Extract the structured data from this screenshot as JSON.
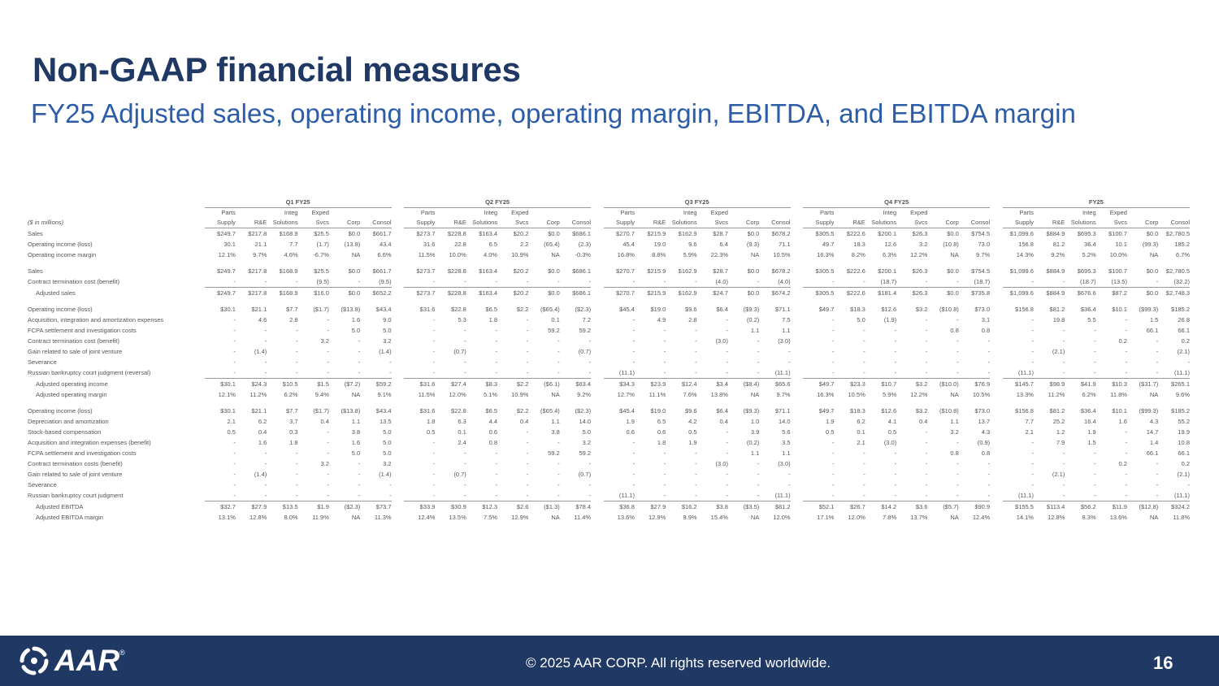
{
  "title": "Non-GAAP financial measures",
  "subtitle": "FY25 Adjusted sales, operating income, operating margin, EBITDA, and EBITDA margin",
  "table": {
    "quarters": [
      "Q1 FY25",
      "Q2 FY25",
      "Q3 FY25",
      "Q4 FY25",
      "FY25"
    ],
    "units_label": "($ in millions)",
    "header_top": [
      "Parts",
      "",
      "Integ",
      "Exped",
      "",
      ""
    ],
    "header_bottom": [
      "Supply",
      "R&E",
      "Solutions",
      "Svcs",
      "Corp",
      "Consol"
    ],
    "rows": [
      {
        "label": "Sales",
        "cells": [
          "$249.7",
          "$217.8",
          "$168.9",
          "$25.5",
          "$0.0",
          "$661.7",
          "$273.7",
          "$228.8",
          "$163.4",
          "$20.2",
          "$0.0",
          "$686.1",
          "$270.7",
          "$215.9",
          "$162.9",
          "$28.7",
          "$0.0",
          "$678.2",
          "$305.5",
          "$222.6",
          "$200.1",
          "$26.3",
          "$0.0",
          "$754.5",
          "$1,099.6",
          "$884.9",
          "$695.3",
          "$100.7",
          "$0.0",
          "$2,780.5"
        ]
      },
      {
        "label": "Operating income (loss)",
        "cells": [
          "30.1",
          "21.1",
          "7.7",
          "(1.7)",
          "(13.8)",
          "43.4",
          "31.6",
          "22.8",
          "6.5",
          "2.2",
          "(65.4)",
          "(2.3)",
          "45.4",
          "19.0",
          "9.6",
          "6.4",
          "(9.3)",
          "71.1",
          "49.7",
          "18.3",
          "12.6",
          "3.2",
          "(10.8)",
          "73.0",
          "156.8",
          "81.2",
          "36.4",
          "10.1",
          "(99.3)",
          "185.2"
        ]
      },
      {
        "label": "Operating income margin",
        "cells": [
          "12.1%",
          "9.7%",
          "4.6%",
          "-6.7%",
          "NA",
          "6.6%",
          "11.5%",
          "10.0%",
          "4.0%",
          "10.9%",
          "NA",
          "-0.3%",
          "16.8%",
          "8.8%",
          "5.9%",
          "22.3%",
          "NA",
          "10.5%",
          "16.3%",
          "8.2%",
          "6.3%",
          "12.2%",
          "NA",
          "9.7%",
          "14.3%",
          "9.2%",
          "5.2%",
          "10.0%",
          "NA",
          "6.7%"
        ]
      },
      {
        "spacer": true
      },
      {
        "label": "Sales",
        "cells": [
          "$249.7",
          "$217.8",
          "$168.9",
          "$25.5",
          "$0.0",
          "$661.7",
          "$273.7",
          "$228.8",
          "$163.4",
          "$20.2",
          "$0.0",
          "$686.1",
          "$270.7",
          "$215.9",
          "$162.9",
          "$28.7",
          "$0.0",
          "$678.2",
          "$305.5",
          "$222.6",
          "$200.1",
          "$26.3",
          "$0.0",
          "$754.5",
          "$1,099.6",
          "$884.9",
          "$695.3",
          "$100.7",
          "$0.0",
          "$2,780.5"
        ]
      },
      {
        "label": "Contract termination cost (benefit)",
        "cells": [
          "-",
          "-",
          "-",
          "(9.5)",
          "-",
          "(9.5)",
          "-",
          "-",
          "-",
          "-",
          "-",
          "-",
          "-",
          "-",
          "-",
          "(4.0)",
          "-",
          "(4.0)",
          "-",
          "-",
          "(18.7)",
          "-",
          "-",
          "(18.7)",
          "-",
          "-",
          "(18.7)",
          "(13.5)",
          "-",
          "(32.2)"
        ]
      },
      {
        "label": "Adjusted sales",
        "indent": true,
        "total": true,
        "cells": [
          "$249.7",
          "$217.8",
          "$168.9",
          "$16.0",
          "$0.0",
          "$652.2",
          "$273.7",
          "$228.8",
          "$163.4",
          "$20.2",
          "$0.0",
          "$686.1",
          "$270.7",
          "$215.9",
          "$162.9",
          "$24.7",
          "$0.0",
          "$674.2",
          "$305.5",
          "$222.6",
          "$181.4",
          "$26.3",
          "$0.0",
          "$735.8",
          "$1,099.6",
          "$884.9",
          "$676.6",
          "$87.2",
          "$0.0",
          "$2,748.3"
        ]
      },
      {
        "spacer": true
      },
      {
        "label": "Operating income (loss)",
        "cells": [
          "$30.1",
          "$21.1",
          "$7.7",
          "($1.7)",
          "($13.8)",
          "$43.4",
          "$31.6",
          "$22.8",
          "$6.5",
          "$2.2",
          "($65.4)",
          "($2.3)",
          "$45.4",
          "$19.0",
          "$9.6",
          "$6.4",
          "($9.3)",
          "$71.1",
          "$49.7",
          "$18.3",
          "$12.6",
          "$3.2",
          "($10.8)",
          "$73.0",
          "$156.8",
          "$81.2",
          "$36.4",
          "$10.1",
          "($99.3)",
          "$185.2"
        ]
      },
      {
        "label": "Acquisition, integration and amortization expenses",
        "cells": [
          "-",
          "4.6",
          "2.8",
          "-",
          "1.6",
          "9.0",
          "-",
          "5.3",
          "1.8",
          "-",
          "0.1",
          "7.2",
          "-",
          "4.9",
          "2.8",
          "-",
          "(0.2)",
          "7.5",
          "-",
          "5.0",
          "(1.9)",
          "-",
          "-",
          "3.1",
          "-",
          "19.8",
          "5.5",
          "-",
          "1.5",
          "26.8"
        ]
      },
      {
        "label": "FCPA settlement and investigation costs",
        "cells": [
          "-",
          "-",
          "-",
          "-",
          "5.0",
          "5.0",
          "-",
          "-",
          "-",
          "-",
          "59.2",
          "59.2",
          "-",
          "-",
          "-",
          "-",
          "1.1",
          "1.1",
          "-",
          "-",
          "-",
          "-",
          "0.8",
          "0.8",
          "-",
          "-",
          "-",
          "-",
          "66.1",
          "66.1"
        ]
      },
      {
        "label": "Contract termination cost (benefit)",
        "cells": [
          "-",
          "-",
          "-",
          "3.2",
          "-",
          "3.2",
          "-",
          "-",
          "-",
          "-",
          "-",
          "-",
          "-",
          "-",
          "-",
          "(3.0)",
          "-",
          "(3.0)",
          "-",
          "-",
          "-",
          "-",
          "-",
          "-",
          "-",
          "-",
          "-",
          "0.2",
          "-",
          "0.2"
        ]
      },
      {
        "label": "Gain related to sale of joint venture",
        "cells": [
          "-",
          "(1.4)",
          "-",
          "-",
          "-",
          "(1.4)",
          "-",
          "(0.7)",
          "-",
          "-",
          "-",
          "(0.7)",
          "-",
          "-",
          "-",
          "-",
          "-",
          "-",
          "-",
          "-",
          "-",
          "-",
          "-",
          "-",
          "-",
          "(2.1)",
          "-",
          "-",
          "-",
          "(2.1)"
        ]
      },
      {
        "label": "Severance",
        "cells": [
          "-",
          "-",
          "-",
          "-",
          "-",
          "-",
          "-",
          "-",
          "-",
          "-",
          "-",
          "-",
          "-",
          "-",
          "-",
          "-",
          "-",
          "-",
          "-",
          "-",
          "-",
          "-",
          "-",
          "-",
          "-",
          "-",
          "-",
          "-",
          "-",
          "-"
        ]
      },
      {
        "label": "Russian bankruptcy court judgment (reversal)",
        "cells": [
          "-",
          "-",
          "-",
          "-",
          "-",
          "-",
          "-",
          "-",
          "-",
          "-",
          "-",
          "-",
          "(11.1)",
          "-",
          "-",
          "-",
          "-",
          "(11.1)",
          "-",
          "-",
          "-",
          "-",
          "-",
          "-",
          "(11.1)",
          "-",
          "-",
          "-",
          "-",
          "(11.1)"
        ]
      },
      {
        "label": "Adjusted operating income",
        "indent": true,
        "total": true,
        "cells": [
          "$30.1",
          "$24.3",
          "$10.5",
          "$1.5",
          "($7.2)",
          "$59.2",
          "$31.6",
          "$27.4",
          "$8.3",
          "$2.2",
          "($6.1)",
          "$63.4",
          "$34.3",
          "$23.9",
          "$12.4",
          "$3.4",
          "($8.4)",
          "$65.6",
          "$49.7",
          "$23.3",
          "$10.7",
          "$3.2",
          "($10.0)",
          "$76.9",
          "$145.7",
          "$98.9",
          "$41.9",
          "$10.3",
          "($31.7)",
          "$265.1"
        ]
      },
      {
        "label": "Adjusted operating margin",
        "indent": true,
        "cells": [
          "12.1%",
          "11.2%",
          "6.2%",
          "9.4%",
          "NA",
          "9.1%",
          "11.5%",
          "12.0%",
          "5.1%",
          "10.9%",
          "NA",
          "9.2%",
          "12.7%",
          "11.1%",
          "7.6%",
          "13.8%",
          "NA",
          "9.7%",
          "16.3%",
          "10.5%",
          "5.9%",
          "12.2%",
          "NA",
          "10.5%",
          "13.3%",
          "11.2%",
          "6.2%",
          "11.8%",
          "NA",
          "9.6%"
        ]
      },
      {
        "spacer": true
      },
      {
        "label": "Operating income (loss)",
        "cells": [
          "$30.1",
          "$21.1",
          "$7.7",
          "($1.7)",
          "($13.8)",
          "$43.4",
          "$31.6",
          "$22.8",
          "$6.5",
          "$2.2",
          "($65.4)",
          "($2.3)",
          "$45.4",
          "$19.0",
          "$9.6",
          "$6.4",
          "($9.3)",
          "$71.1",
          "$49.7",
          "$18.3",
          "$12.6",
          "$3.2",
          "($10.8)",
          "$73.0",
          "$156.8",
          "$81.2",
          "$36.4",
          "$10.1",
          "($99.3)",
          "$185.2"
        ]
      },
      {
        "label": "Depreciation and amortization",
        "cells": [
          "2.1",
          "6.2",
          "3.7",
          "0.4",
          "1.1",
          "13.5",
          "1.8",
          "6.3",
          "4.4",
          "0.4",
          "1.1",
          "14.0",
          "1.9",
          "6.5",
          "4.2",
          "0.4",
          "1.0",
          "14.0",
          "1.9",
          "6.2",
          "4.1",
          "0.4",
          "1.1",
          "13.7",
          "7.7",
          "25.2",
          "16.4",
          "1.6",
          "4.3",
          "55.2"
        ]
      },
      {
        "label": "Stock-based compensation",
        "cells": [
          "0.5",
          "0.4",
          "0.3",
          "-",
          "3.8",
          "5.0",
          "0.5",
          "0.1",
          "0.6",
          "-",
          "3.8",
          "5.0",
          "0.6",
          "0.6",
          "0.5",
          "-",
          "3.9",
          "5.6",
          "0.5",
          "0.1",
          "0.5",
          "-",
          "3.2",
          "4.3",
          "2.1",
          "1.2",
          "1.9",
          "-",
          "14.7",
          "19.9"
        ]
      },
      {
        "label": "Acquisition and integration expenses (benefit)",
        "cells": [
          "-",
          "1.6",
          "1.8",
          "-",
          "1.6",
          "5.0",
          "-",
          "2.4",
          "0.8",
          "-",
          "-",
          "3.2",
          "-",
          "1.8",
          "1.9",
          "-",
          "(0.2)",
          "3.5",
          "-",
          "2.1",
          "(3.0)",
          "-",
          "-",
          "(0.9)",
          "-",
          "7.9",
          "1.5",
          "-",
          "1.4",
          "10.8"
        ]
      },
      {
        "label": "FCPA settlement and investigation costs",
        "cells": [
          "-",
          "-",
          "-",
          "-",
          "5.0",
          "5.0",
          "-",
          "-",
          "-",
          "-",
          "59.2",
          "59.2",
          "-",
          "-",
          "-",
          "-",
          "1.1",
          "1.1",
          "-",
          "-",
          "-",
          "-",
          "0.8",
          "0.8",
          "-",
          "-",
          "-",
          "-",
          "66.1",
          "66.1"
        ]
      },
      {
        "label": "Contract termination costs (benefit)",
        "cells": [
          "-",
          "-",
          "-",
          "3.2",
          "-",
          "3.2",
          "-",
          "-",
          "-",
          "-",
          "-",
          "-",
          "-",
          "-",
          "-",
          "(3.0)",
          "-",
          "(3.0)",
          "-",
          "-",
          "-",
          "-",
          "-",
          "-",
          "-",
          "-",
          "-",
          "0.2",
          "-",
          "0.2"
        ]
      },
      {
        "label": "Gain related to sale of joint venture",
        "cells": [
          "-",
          "(1.4)",
          "-",
          "-",
          "-",
          "(1.4)",
          "-",
          "(0.7)",
          "-",
          "-",
          "-",
          "(0.7)",
          "-",
          "-",
          "-",
          "-",
          "-",
          "-",
          "-",
          "-",
          "-",
          "-",
          "-",
          "-",
          "-",
          "(2.1)",
          "-",
          "-",
          "-",
          "(2.1)"
        ]
      },
      {
        "label": "Severance",
        "cells": [
          "-",
          "-",
          "-",
          "-",
          "-",
          "-",
          "-",
          "-",
          "-",
          "-",
          "-",
          "-",
          "-",
          "-",
          "-",
          "-",
          "-",
          "-",
          "-",
          "-",
          "-",
          "-",
          "-",
          "-",
          "-",
          "-",
          "-",
          "-",
          "-",
          "-"
        ]
      },
      {
        "label": "Russian bankruptcy court judgment",
        "cells": [
          "-",
          "-",
          "-",
          "-",
          "-",
          "-",
          "-",
          "-",
          "-",
          "-",
          "-",
          "-",
          "(11.1)",
          "-",
          "-",
          "-",
          "-",
          "(11.1)",
          "-",
          "-",
          "-",
          "-",
          "-",
          "-",
          "(11.1)",
          "-",
          "-",
          "-",
          "-",
          "(11.1)"
        ]
      },
      {
        "label": "Adjusted EBITDA",
        "indent": true,
        "total": true,
        "cells": [
          "$32.7",
          "$27.9",
          "$13.5",
          "$1.9",
          "($2.3)",
          "$73.7",
          "$33.9",
          "$30.9",
          "$12.3",
          "$2.6",
          "($1.3)",
          "$78.4",
          "$36.8",
          "$27.9",
          "$16.2",
          "$3.8",
          "($3.5)",
          "$81.2",
          "$52.1",
          "$26.7",
          "$14.2",
          "$3.6",
          "($5.7)",
          "$90.9",
          "$155.5",
          "$113.4",
          "$56.2",
          "$11.9",
          "($12.8)",
          "$324.2"
        ]
      },
      {
        "label": "Adjusted EBITDA margin",
        "indent": true,
        "cells": [
          "13.1%",
          "12.8%",
          "8.0%",
          "11.9%",
          "NA",
          "11.3%",
          "12.4%",
          "13.5%",
          "7.5%",
          "12.9%",
          "NA",
          "11.4%",
          "13.6%",
          "12.9%",
          "9.9%",
          "15.4%",
          "NA",
          "12.0%",
          "17.1%",
          "12.0%",
          "7.8%",
          "13.7%",
          "NA",
          "12.4%",
          "14.1%",
          "12.8%",
          "8.3%",
          "13.6%",
          "NA",
          "11.8%"
        ]
      }
    ]
  },
  "footer": {
    "logo_text": "AAR",
    "logo_reg": "®",
    "copyright": "© 2025 AAR CORP. All rights reserved worldwide.",
    "page_number": "16"
  },
  "colors": {
    "navy": "#1f3864",
    "subtitle_blue": "#2e5da8"
  }
}
